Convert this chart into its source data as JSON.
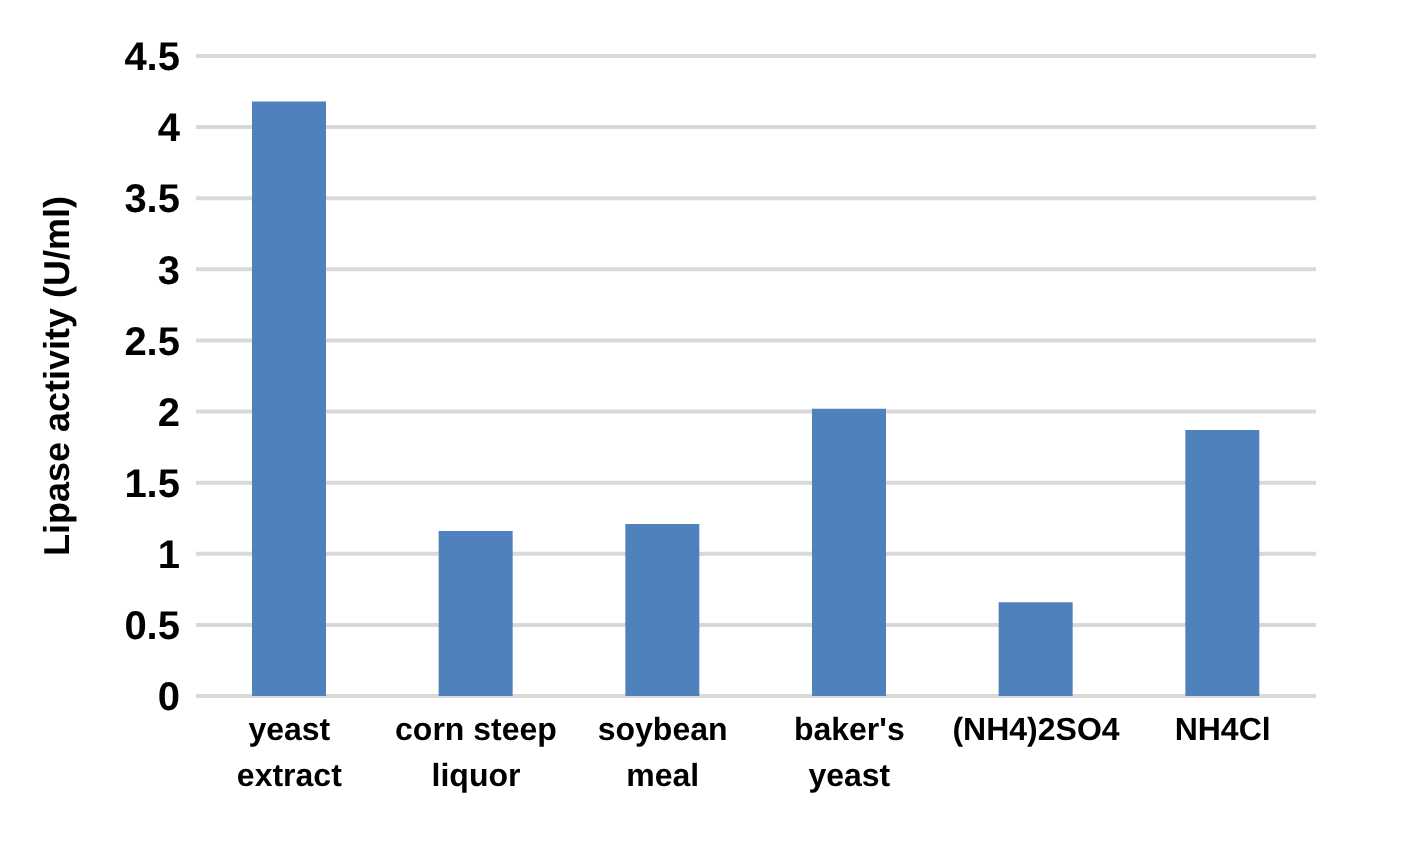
{
  "chart_data": {
    "type": "bar",
    "ylabel": "Lipase activity (U/ml)",
    "categories": [
      "yeast extract",
      "corn steep liquor",
      "soybean meal",
      "baker's yeast",
      "(NH4)2SO4",
      "NH4Cl"
    ],
    "values": [
      4.18,
      1.16,
      1.21,
      2.02,
      0.66,
      1.87
    ],
    "color": "#4f81bd",
    "ylim": [
      0,
      4.5
    ],
    "yticks": [
      0,
      0.5,
      1,
      1.5,
      2,
      2.5,
      3,
      3.5,
      4,
      4.5
    ],
    "grid": "y"
  }
}
